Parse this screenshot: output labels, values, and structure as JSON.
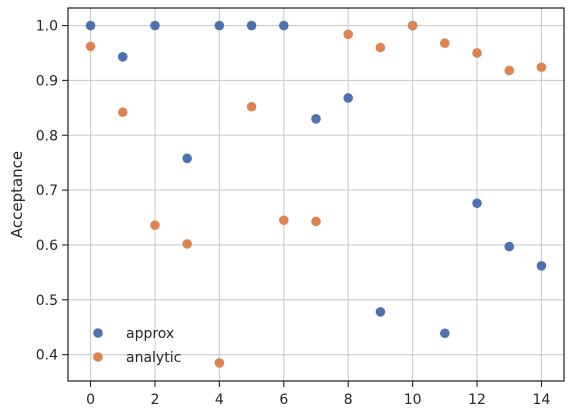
{
  "chart_data": {
    "type": "scatter",
    "title": "",
    "xlabel": "",
    "ylabel": "Acceptance",
    "xlim": [
      -0.7,
      14.7
    ],
    "ylim": [
      0.352,
      1.032
    ],
    "xticks": [
      0,
      2,
      4,
      6,
      8,
      10,
      12,
      14
    ],
    "yticks": [
      0.4,
      0.5,
      0.6,
      0.7,
      0.8,
      0.9,
      1.0
    ],
    "ytick_labels": [
      "0.4",
      "0.5",
      "0.6",
      "0.7",
      "0.8",
      "0.9",
      "1.0"
    ],
    "grid": true,
    "legend_position": "lower-left",
    "series": [
      {
        "name": "approx",
        "color": "#4c72b0",
        "x": [
          0,
          1,
          2,
          3,
          4,
          5,
          6,
          7,
          8,
          9,
          10,
          11,
          12,
          13,
          14
        ],
        "y": [
          1.0,
          0.943,
          1.0,
          0.758,
          1.0,
          1.0,
          1.0,
          0.83,
          0.868,
          0.478,
          1.0,
          0.439,
          0.676,
          0.597,
          0.562
        ]
      },
      {
        "name": "analytic",
        "color": "#dd8452",
        "x": [
          0,
          1,
          2,
          3,
          4,
          5,
          6,
          7,
          8,
          9,
          10,
          11,
          12,
          13,
          14
        ],
        "y": [
          0.962,
          0.842,
          0.636,
          0.602,
          0.385,
          0.852,
          0.645,
          0.643,
          0.984,
          0.96,
          1.0,
          0.968,
          0.95,
          0.918,
          0.924
        ]
      }
    ]
  }
}
